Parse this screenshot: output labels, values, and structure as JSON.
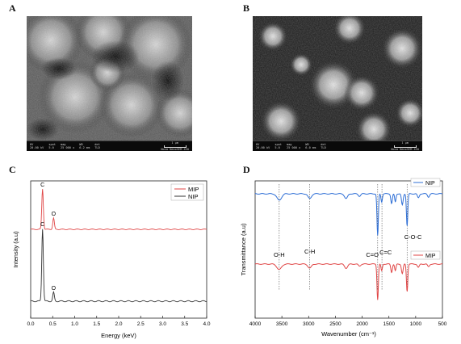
{
  "panels": {
    "a": {
      "letter": "A"
    },
    "b": {
      "letter": "B"
    },
    "c": {
      "letter": "C"
    },
    "d": {
      "letter": "D"
    }
  },
  "sem_a": {
    "info": [
      {
        "label": "HV",
        "value": "20.00 kV"
      },
      {
        "label": "spot",
        "value": "5.0"
      },
      {
        "label": "mag",
        "value": "25 000 x"
      },
      {
        "label": "WD",
        "value": "6.2 mm"
      },
      {
        "label": "det",
        "value": "TLD"
      }
    ],
    "scale_label": "1 µm",
    "instrument": "Nova NanoSEM 450"
  },
  "sem_b": {
    "info": [
      {
        "label": "HV",
        "value": "20.00 kV"
      },
      {
        "label": "spot",
        "value": "5.0"
      },
      {
        "label": "mag",
        "value": "25 000 x"
      },
      {
        "label": "WD",
        "value": "6.0 mm"
      },
      {
        "label": "det",
        "value": "TLD"
      }
    ],
    "scale_label": "1 µm",
    "instrument": "Nova NanoSEM 450"
  },
  "chart_data": [
    {
      "type": "line",
      "id": "eds",
      "xlabel": "Energy (keV)",
      "ylabel": "Intensity (a.u)",
      "xlim": [
        0,
        4.0
      ],
      "xticks": [
        "0.0",
        "0.5",
        "1.0",
        "1.5",
        "2.0",
        "2.5",
        "3.0",
        "3.5",
        "4.0"
      ],
      "legend_position": "top-right",
      "series": [
        {
          "name": "MIP",
          "color": "#e04646",
          "peaks": [
            {
              "x": 0.27,
              "height": 1.0,
              "label": "C"
            },
            {
              "x": 0.52,
              "height": 0.28,
              "label": "O"
            }
          ]
        },
        {
          "name": "NIP",
          "color": "#333333",
          "peaks": [
            {
              "x": 0.27,
              "height": 1.0,
              "label": "C"
            },
            {
              "x": 0.52,
              "height": 0.12,
              "label": "O"
            }
          ]
        }
      ]
    },
    {
      "type": "line",
      "id": "ftir",
      "xlabel": "Wavenumber (cm⁻¹)",
      "ylabel": "Transmittance (a.u)",
      "xlim": [
        4000,
        500
      ],
      "xticks": [
        "4000",
        "3500",
        "3000",
        "2500",
        "2000",
        "1500",
        "1000",
        "500"
      ],
      "legend_position": "right",
      "series": [
        {
          "name": "NIP",
          "color": "#2f6fd6"
        },
        {
          "name": "MIP",
          "color": "#e04646"
        }
      ],
      "bands": [
        {
          "x": 3550,
          "label": "O-H"
        },
        {
          "x": 2980,
          "label": "C-H"
        },
        {
          "x": 1710,
          "label": "C=O"
        },
        {
          "x": 1630,
          "label": "C=C"
        },
        {
          "x": 1160,
          "label": "C-O-C"
        }
      ]
    }
  ]
}
